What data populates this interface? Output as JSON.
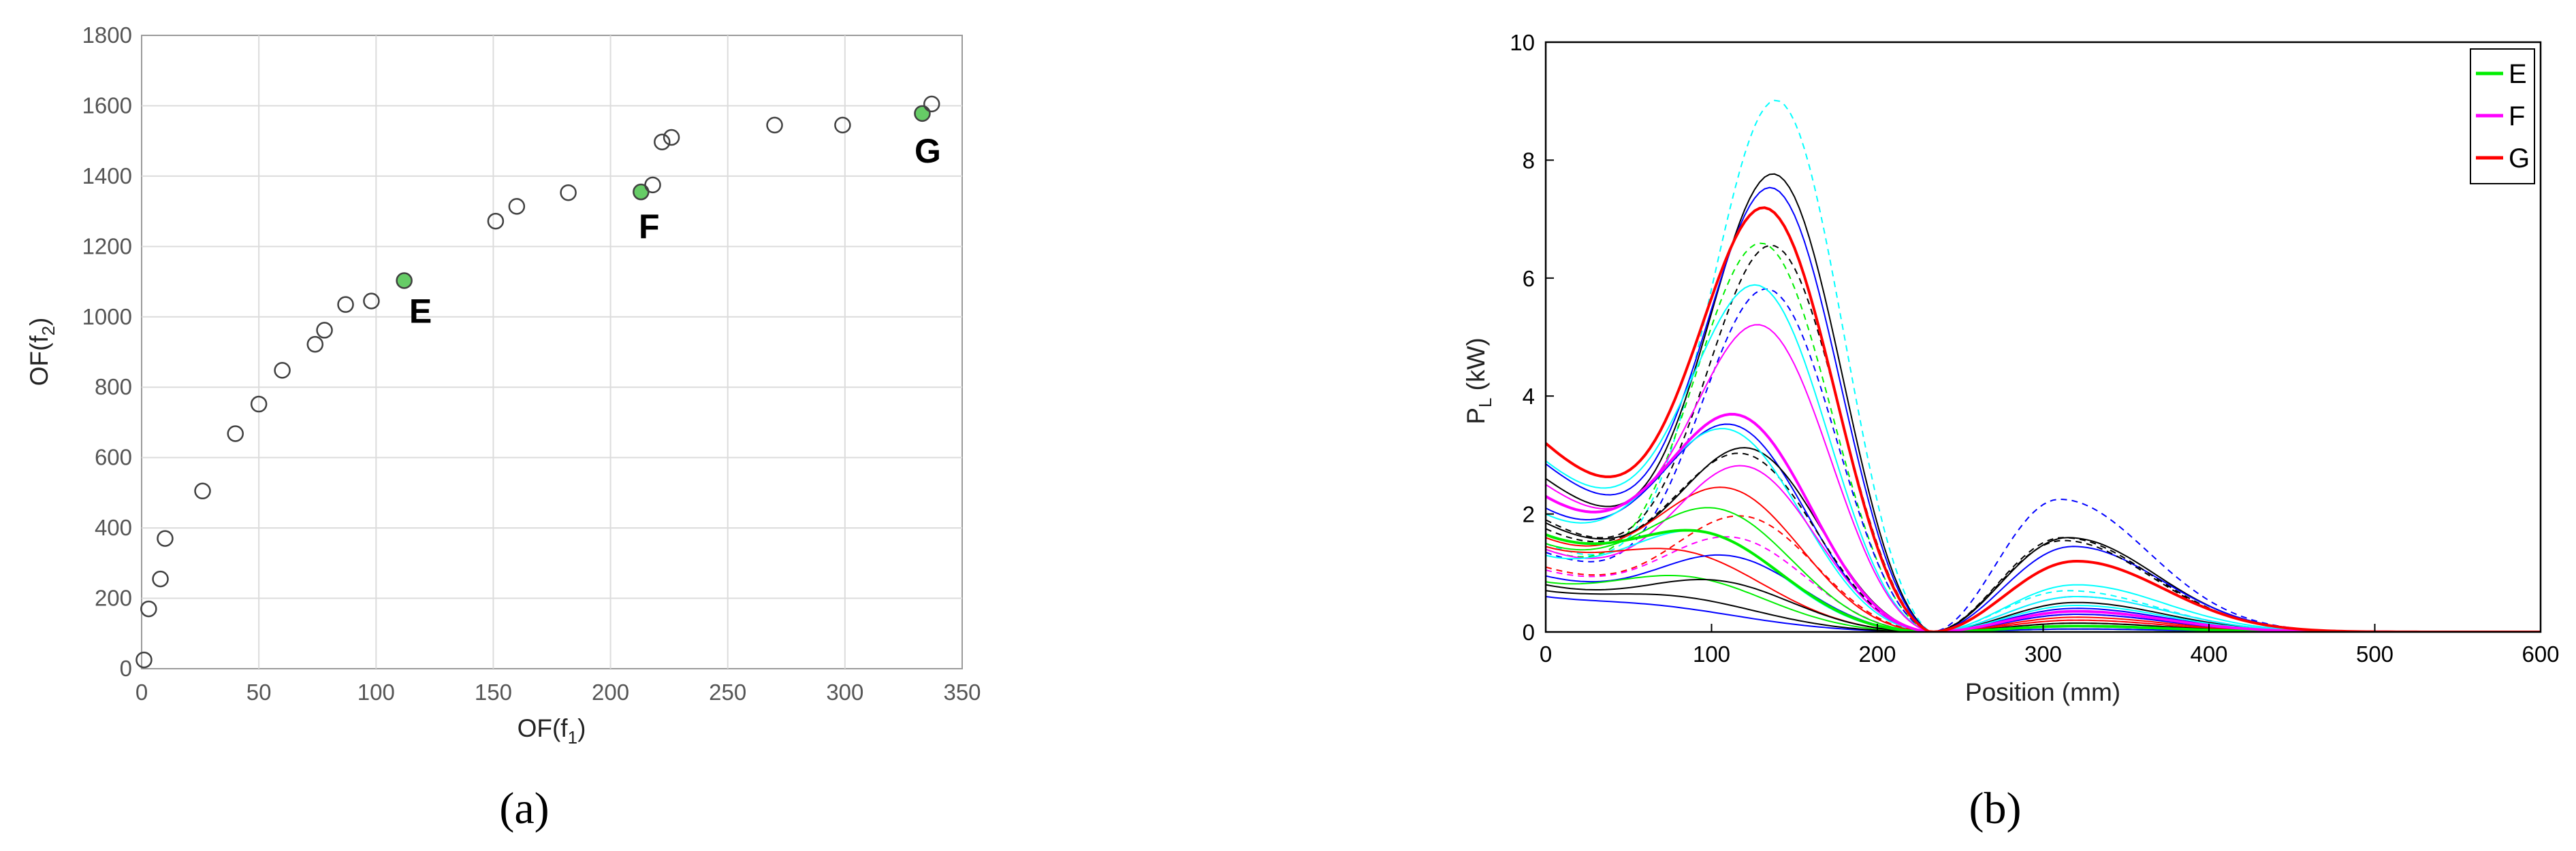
{
  "chart_data": [
    {
      "type": "scatter",
      "panel_label": "(a)",
      "xlabel": "OF(f1)",
      "ylabel": "OF(f2)",
      "xlim": [
        0,
        350
      ],
      "ylim": [
        0,
        1800
      ],
      "xticks": [
        0,
        50,
        100,
        150,
        200,
        250,
        300,
        350
      ],
      "yticks": [
        0,
        200,
        400,
        600,
        800,
        1000,
        1200,
        1400,
        1600,
        1800
      ],
      "grid": true,
      "points": [
        [
          1,
          25
        ],
        [
          3,
          170
        ],
        [
          8,
          255
        ],
        [
          10,
          370
        ],
        [
          26,
          505
        ],
        [
          40,
          668
        ],
        [
          50,
          752
        ],
        [
          60,
          848
        ],
        [
          74,
          922
        ],
        [
          78,
          962
        ],
        [
          87,
          1035
        ],
        [
          98,
          1045
        ],
        [
          112,
          1103
        ],
        [
          151,
          1272
        ],
        [
          160,
          1314
        ],
        [
          182,
          1353
        ],
        [
          213,
          1355
        ],
        [
          218,
          1375
        ],
        [
          222,
          1497
        ],
        [
          226,
          1510
        ],
        [
          270,
          1545
        ],
        [
          299,
          1545
        ],
        [
          333,
          1578
        ],
        [
          337,
          1605
        ]
      ],
      "highlighted": [
        {
          "label": "E",
          "x": 112,
          "y": 1103
        },
        {
          "label": "F",
          "x": 213,
          "y": 1355
        },
        {
          "label": "G",
          "x": 333,
          "y": 1578
        }
      ],
      "marker_color": "#404040",
      "highlight_color": "#66cc66"
    },
    {
      "type": "line",
      "panel_label": "(b)",
      "xlabel": "Position (mm)",
      "ylabel": "PL (kW)",
      "xlim": [
        0,
        600
      ],
      "ylim": [
        0,
        10
      ],
      "xticks": [
        0,
        100,
        200,
        300,
        400,
        500,
        600
      ],
      "yticks": [
        0,
        2,
        4,
        6,
        8,
        10
      ],
      "grid": false,
      "legend": {
        "position": "top-right",
        "entries": [
          "E",
          "F",
          "G"
        ]
      },
      "zero_point": 232,
      "series": [
        {
          "name": "G",
          "color": "#ff0000",
          "width": 4,
          "dash": false,
          "v0": 3.2,
          "peak": 7.45,
          "xp": 145,
          "sec": 1.2,
          "xs": 320
        },
        {
          "name": "F",
          "color": "#ff00ff",
          "width": 4,
          "dash": false,
          "v0": 2.3,
          "peak": 3.65,
          "xp": 120,
          "sec": 0.35,
          "xs": 320
        },
        {
          "name": "E",
          "color": "#00ee00",
          "width": 4,
          "dash": false,
          "v0": 1.65,
          "peak": 1.8,
          "xp": 90,
          "sec": 0.1,
          "xs": 320
        },
        {
          "color": "#00ffff",
          "width": 2,
          "dash": true,
          "v0": 1.5,
          "peak": 9.85,
          "xp": 153,
          "sec": 0.7,
          "xs": 315
        },
        {
          "color": "#000000",
          "width": 2,
          "dash": false,
          "v0": 2.6,
          "peak": 8.35,
          "xp": 152,
          "sec": 1.6,
          "xs": 315
        },
        {
          "color": "#0000ff",
          "width": 2,
          "dash": false,
          "v0": 2.85,
          "peak": 8.0,
          "xp": 150,
          "sec": 1.45,
          "xs": 318
        },
        {
          "color": "#000000",
          "width": 2,
          "dash": true,
          "v0": 1.9,
          "peak": 7.0,
          "xp": 150,
          "sec": 1.6,
          "xs": 312
        },
        {
          "color": "#00ee00",
          "width": 2,
          "dash": true,
          "v0": 1.4,
          "peak": 6.8,
          "xp": 140,
          "sec": 0.05,
          "xs": 320
        },
        {
          "color": "#0000ff",
          "width": 2,
          "dash": true,
          "v0": 1.35,
          "peak": 6.1,
          "xp": 145,
          "sec": 2.25,
          "xs": 310
        },
        {
          "color": "#00ffff",
          "width": 2,
          "dash": false,
          "v0": 2.9,
          "peak": 5.95,
          "xp": 138,
          "sec": 0.8,
          "xs": 320
        },
        {
          "color": "#ff00ff",
          "width": 2,
          "dash": false,
          "v0": 2.5,
          "peak": 5.3,
          "xp": 140,
          "sec": 0.6,
          "xs": 320
        },
        {
          "color": "#0000ff",
          "width": 2,
          "dash": false,
          "v0": 2.1,
          "peak": 3.5,
          "xp": 115,
          "sec": 0.4,
          "xs": 320
        },
        {
          "color": "#000000",
          "width": 2,
          "dash": false,
          "v0": 1.85,
          "peak": 3.1,
          "xp": 130,
          "sec": 0.5,
          "xs": 320
        },
        {
          "color": "#000000",
          "width": 2,
          "dash": true,
          "v0": 1.75,
          "peak": 3.0,
          "xp": 125,
          "sec": 1.55,
          "xs": 312
        },
        {
          "color": "#00ffff",
          "width": 2,
          "dash": false,
          "v0": 2.0,
          "peak": 3.45,
          "xp": 110,
          "sec": 0.6,
          "xs": 320
        },
        {
          "color": "#ff0000",
          "width": 2,
          "dash": false,
          "v0": 1.6,
          "peak": 2.45,
          "xp": 110,
          "sec": 0.25,
          "xs": 320
        },
        {
          "color": "#ff00ff",
          "width": 2,
          "dash": false,
          "v0": 1.4,
          "peak": 2.8,
          "xp": 125,
          "sec": 0.3,
          "xs": 320
        },
        {
          "color": "#ff0000",
          "width": 2,
          "dash": true,
          "v0": 1.1,
          "peak": 1.95,
          "xp": 125,
          "sec": 0.15,
          "xs": 320
        },
        {
          "color": "#ff00ff",
          "width": 2,
          "dash": true,
          "v0": 1.05,
          "peak": 1.6,
          "xp": 115,
          "sec": 0.2,
          "xs": 320
        },
        {
          "color": "#00ee00",
          "width": 2,
          "dash": false,
          "v0": 1.5,
          "peak": 2.15,
          "xp": 100,
          "sec": 0.1,
          "xs": 320
        },
        {
          "color": "#00ffff",
          "width": 2,
          "dash": false,
          "v0": 1.3,
          "peak": 1.85,
          "xp": 85,
          "sec": 0.45,
          "xs": 320
        },
        {
          "color": "#ff0000",
          "width": 2,
          "dash": false,
          "v0": 1.45,
          "peak": 1.6,
          "xp": 70,
          "sec": 0.2,
          "xs": 320
        },
        {
          "color": "#0000ff",
          "width": 2,
          "dash": false,
          "v0": 0.95,
          "peak": 1.3,
          "xp": 110,
          "sec": 0.3,
          "xs": 320
        },
        {
          "color": "#00ee00",
          "width": 2,
          "dash": false,
          "v0": 0.85,
          "peak": 1.1,
          "xp": 70,
          "sec": 0.05,
          "xs": 320
        },
        {
          "color": "#000000",
          "width": 2,
          "dash": false,
          "v0": 0.8,
          "peak": 0.9,
          "xp": 100,
          "sec": 0.15,
          "xs": 320
        },
        {
          "color": "#0000ff",
          "width": 2,
          "dash": false,
          "v0": 0.6,
          "peak": 0.62,
          "xp": 40,
          "sec": 0.05,
          "xs": 320
        },
        {
          "color": "#000000",
          "width": 2,
          "dash": false,
          "v0": 0.7,
          "peak": 0.75,
          "xp": 60,
          "sec": 0.1,
          "xs": 320
        }
      ]
    }
  ],
  "labels": {
    "caption_a": "(a)",
    "caption_b": "(b)",
    "a_ylabel_base": "OF(f",
    "a_ylabel_sub": "2",
    "a_ylabel_tail": ")",
    "a_xlabel_base": "OF(f",
    "a_xlabel_sub": "1",
    "a_xlabel_tail": ")",
    "b_xlabel": "Position (mm)",
    "b_ylabel_base": "P",
    "b_ylabel_sub": "L",
    "b_ylabel_tail": " (kW)"
  }
}
